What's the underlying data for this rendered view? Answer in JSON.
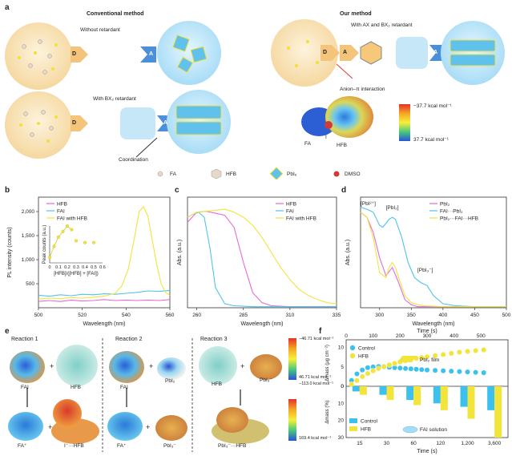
{
  "panels": {
    "a": "a",
    "b": "b",
    "c": "c",
    "d": "d",
    "e": "e",
    "f": "f"
  },
  "panel_a": {
    "conventional_title": "Conventional method",
    "our_title": "Our method",
    "without_retardant": "Without retardant",
    "with_bx2": "With BX₂ retardant",
    "with_ax_bx2": "With AX and BX₂ retardant",
    "coordination": "Coordination",
    "anion_pi": "Anion–π interaction",
    "d_label": "D",
    "a_label": "A",
    "fa_label": "FA",
    "i_label": "I",
    "hfb_label": "HFB",
    "scale_top": "−37.7 kcal mol⁻¹",
    "scale_bottom": "37.7 kcal mol⁻¹",
    "legend": [
      "FA",
      "HFB",
      "PbI₆",
      "DMSO"
    ]
  },
  "panel_e": {
    "reactions": [
      "Reaction 1",
      "Reaction 2",
      "Reaction 3"
    ],
    "labels_top": [
      "FAI",
      "HFB",
      "FAI",
      "PbI₂",
      "HFB",
      "PbI₃⁻"
    ],
    "labels_bottom": [
      "FA⁺",
      "I⁻···HFB",
      "FA⁺",
      "PbI₃⁻",
      "PbI₃⁻···HFB"
    ],
    "scale1_top": "−46.71 kcal mol⁻¹",
    "scale1_bottom": "46.71 kcal mol⁻¹",
    "scale2_top": "−113.0 kcal mol⁻¹",
    "scale2_bottom": "169.4 kcal mol⁻¹",
    "plus": "+"
  },
  "colors": {
    "hfb": "#e66ad6",
    "fai": "#4fc4ee",
    "fai_hfb": "#f2e43a",
    "pbi2": "#e66ad6",
    "fai_pbi2": "#4fc4ee",
    "pbi2_fai_hfb": "#f2e43a",
    "control": "#3cc0ee"
  },
  "chart_data": [
    {
      "id": "b",
      "type": "line",
      "xlabel": "Wavelength (nm)",
      "ylabel": "PL intensity (counts)",
      "xlim": [
        500,
        560
      ],
      "ylim": [
        0,
        2300
      ],
      "xticks": [
        500,
        520,
        540,
        560
      ],
      "yticks": [
        500,
        1000,
        1500,
        2000
      ],
      "ytick_labels": [
        "500",
        "1,000",
        "1,500",
        "2,000"
      ],
      "series": [
        {
          "name": "HFB",
          "color": "#e66ad6",
          "x": [
            500,
            505,
            510,
            515,
            520,
            525,
            530,
            535,
            540,
            545,
            550,
            555,
            560
          ],
          "y": [
            130,
            150,
            130,
            160,
            140,
            150,
            170,
            150,
            160,
            150,
            160,
            150,
            170
          ]
        },
        {
          "name": "FAI",
          "color": "#4fc4ee",
          "x": [
            500,
            505,
            510,
            515,
            520,
            525,
            530,
            535,
            540,
            545,
            550,
            555,
            560
          ],
          "y": [
            260,
            240,
            270,
            250,
            280,
            270,
            290,
            280,
            300,
            320,
            350,
            340,
            360
          ]
        },
        {
          "name": "FAI with HFB",
          "color": "#f2e43a",
          "x": [
            500,
            505,
            510,
            515,
            520,
            525,
            530,
            535,
            538,
            541,
            544,
            546,
            548,
            550,
            552,
            554,
            556,
            558,
            560
          ],
          "y": [
            180,
            200,
            190,
            210,
            200,
            220,
            240,
            300,
            450,
            800,
            1500,
            2000,
            2100,
            1900,
            1400,
            900,
            500,
            320,
            260
          ]
        }
      ],
      "inset": {
        "xlabel": "[HFB]/([HFB] + [FAI])",
        "ylabel": "Peak counts (a.u.)",
        "xticks": [
          0,
          0.1,
          0.2,
          0.3,
          0.4,
          0.5,
          0.6
        ],
        "x": [
          0,
          0.05,
          0.1,
          0.15,
          0.2,
          0.25,
          0.3,
          0.4,
          0.5
        ],
        "y": [
          0.15,
          0.45,
          0.7,
          0.85,
          1.0,
          0.9,
          0.6,
          0.55,
          0.55
        ]
      }
    },
    {
      "id": "c",
      "type": "line",
      "xlabel": "Wavelength (nm)",
      "ylabel": "Abs. (a.u.)",
      "xlim": [
        255,
        335
      ],
      "ylim": [
        0,
        1.1
      ],
      "xticks": [
        260,
        285,
        310,
        335
      ],
      "series": [
        {
          "name": "HFB",
          "color": "#e66ad6",
          "x": [
            255,
            260,
            265,
            270,
            275,
            280,
            285,
            290,
            295,
            300,
            310,
            320,
            335
          ],
          "y": [
            0.85,
            0.95,
            0.96,
            0.94,
            0.92,
            0.8,
            0.45,
            0.15,
            0.05,
            0.02,
            0.01,
            0.01,
            0.01
          ]
        },
        {
          "name": "FAI",
          "color": "#4fc4ee",
          "x": [
            255,
            258,
            261,
            264,
            267,
            270,
            275,
            280,
            290,
            300,
            335
          ],
          "y": [
            0.9,
            0.93,
            0.95,
            0.9,
            0.6,
            0.2,
            0.04,
            0.02,
            0.01,
            0.01,
            0.01
          ]
        },
        {
          "name": "FAI with HFB",
          "color": "#f2e43a",
          "x": [
            255,
            260,
            265,
            270,
            275,
            280,
            285,
            290,
            295,
            300,
            305,
            310,
            315,
            320,
            325,
            330,
            335
          ],
          "y": [
            0.9,
            0.95,
            0.96,
            0.97,
            0.98,
            0.95,
            0.9,
            0.82,
            0.7,
            0.55,
            0.4,
            0.28,
            0.18,
            0.12,
            0.08,
            0.05,
            0.04
          ]
        }
      ]
    },
    {
      "id": "d",
      "type": "line",
      "xlabel": "Wavelength (nm)",
      "ylabel": "Abs. (a.u.)",
      "xlim": [
        270,
        500
      ],
      "ylim": [
        0,
        1.1
      ],
      "xticks": [
        300,
        350,
        400,
        450,
        500
      ],
      "annotations": [
        "[PbI²⁺]",
        "[PbI₂]",
        "[PbI₃⁻]"
      ],
      "series": [
        {
          "name": "PbI₂",
          "color": "#e66ad6",
          "x": [
            270,
            280,
            290,
            300,
            310,
            320,
            330,
            340,
            350,
            360,
            370,
            400,
            500
          ],
          "y": [
            0.95,
            0.9,
            0.75,
            0.5,
            0.32,
            0.4,
            0.25,
            0.08,
            0.03,
            0.01,
            0.01,
            0.01,
            0.01
          ]
        },
        {
          "name": "FAI···PbI₂",
          "color": "#4fc4ee",
          "x": [
            270,
            280,
            290,
            300,
            305,
            315,
            320,
            325,
            335,
            345,
            355,
            365,
            375,
            385,
            400,
            420,
            450,
            500
          ],
          "y": [
            1.0,
            0.98,
            0.95,
            0.82,
            0.8,
            0.88,
            0.9,
            0.88,
            0.7,
            0.45,
            0.3,
            0.25,
            0.22,
            0.12,
            0.04,
            0.02,
            0.01,
            0.01
          ]
        },
        {
          "name": "PbI₂···FAI···HFB",
          "color": "#f2e43a",
          "x": [
            270,
            280,
            290,
            300,
            310,
            315,
            320,
            325,
            330,
            340,
            350,
            360,
            370,
            400,
            500
          ],
          "y": [
            0.95,
            0.9,
            0.7,
            0.35,
            0.3,
            0.4,
            0.45,
            0.4,
            0.3,
            0.12,
            0.05,
            0.03,
            0.02,
            0.01,
            0.01
          ]
        }
      ]
    },
    {
      "id": "f_top",
      "type": "scatter",
      "xlabel_top": "Time (s)",
      "ylabel": "Δmass (μg cm⁻²)",
      "xlim": [
        0,
        600
      ],
      "ylim": [
        0,
        12
      ],
      "xticks": [
        0,
        100,
        200,
        300,
        400,
        500
      ],
      "yticks": [
        0,
        5,
        10
      ],
      "film_label": "PbI₂ film",
      "series": [
        {
          "name": "Control",
          "color": "#3cc0ee",
          "x": [
            20,
            40,
            60,
            80,
            100,
            120,
            140,
            160,
            180,
            200,
            220,
            240,
            260,
            280,
            300,
            330,
            360,
            390,
            420,
            450,
            480,
            510
          ],
          "y": [
            1.5,
            3.2,
            4.2,
            4.8,
            5.0,
            5.1,
            5.0,
            4.9,
            4.8,
            4.7,
            4.6,
            4.5,
            4.4,
            4.3,
            4.2,
            4.1,
            4.0,
            3.9,
            3.8,
            3.7,
            3.6,
            3.5
          ]
        },
        {
          "name": "HFB",
          "color": "#f2e43a",
          "x": [
            20,
            40,
            60,
            80,
            100,
            120,
            140,
            160,
            180,
            200,
            220,
            240,
            260,
            280,
            300,
            330,
            360,
            390,
            420,
            450,
            480,
            510
          ],
          "y": [
            0.5,
            1.5,
            2.5,
            3.3,
            4.0,
            4.6,
            5.1,
            5.5,
            5.9,
            6.3,
            6.6,
            6.9,
            7.2,
            7.4,
            7.6,
            7.9,
            8.2,
            8.5,
            8.8,
            9.0,
            9.2,
            9.4
          ]
        }
      ]
    },
    {
      "id": "f_bottom",
      "type": "bar",
      "xlabel": "Time (s)",
      "ylabel": "Δmass (%)",
      "categories": [
        "15",
        "30",
        "60",
        "120",
        "1,200",
        "3,600"
      ],
      "ylim": [
        0,
        30
      ],
      "yticks": [
        0,
        10,
        20,
        30
      ],
      "solution_label": "FAI solution",
      "series": [
        {
          "name": "Control",
          "color": "#3cc0ee",
          "values": [
            3,
            5,
            8,
            10,
            12,
            14
          ]
        },
        {
          "name": "HFB",
          "color": "#f2e43a",
          "values": [
            5,
            8,
            11,
            14,
            19,
            30
          ]
        }
      ]
    }
  ]
}
